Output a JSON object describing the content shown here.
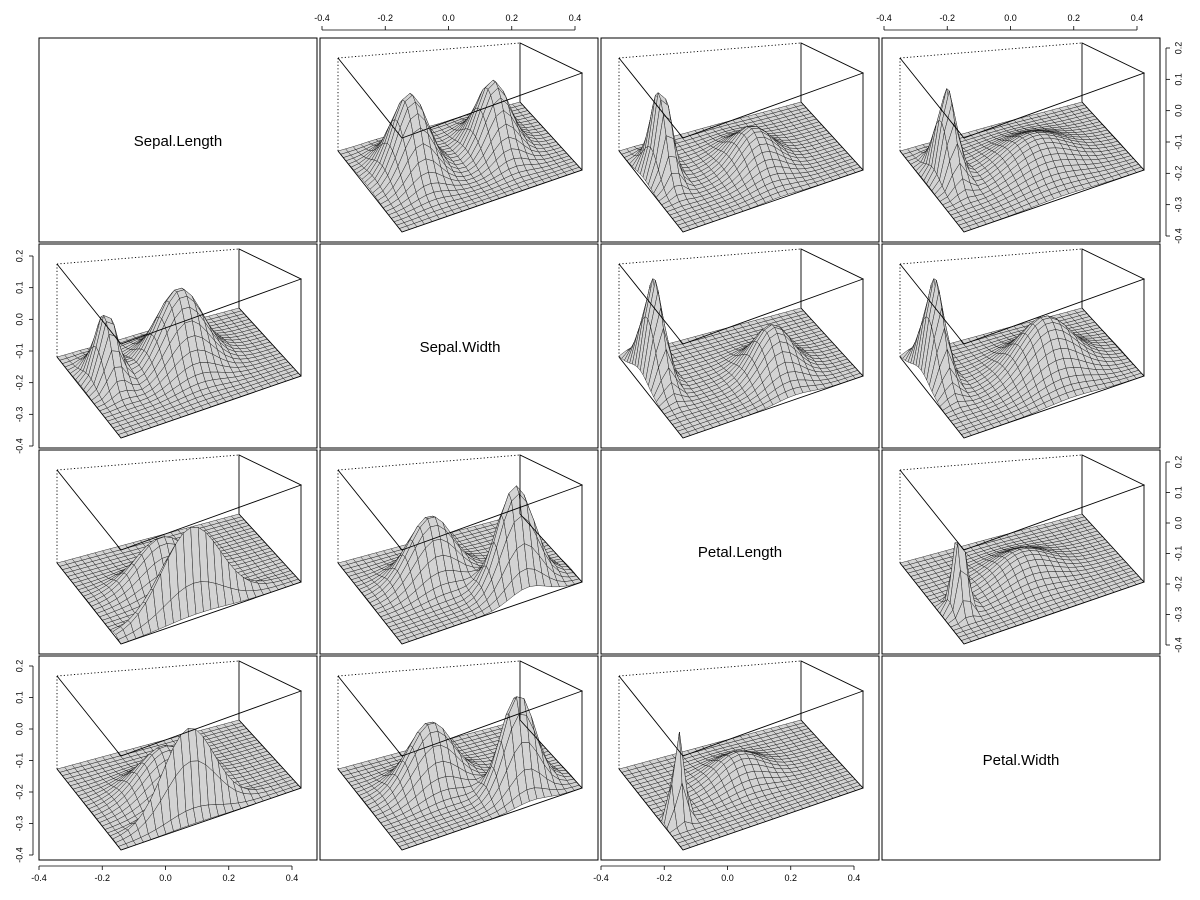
{
  "chart_data": {
    "type": "perspective-surface-matrix",
    "variables": [
      "Sepal.Length",
      "Sepal.Width",
      "Petal.Length",
      "Petal.Width"
    ],
    "tick_labels": [
      "-0.4",
      "-0.2",
      "0.0",
      "0.2",
      "0.4"
    ],
    "vertical_tick_labels": [
      "0.2",
      "0.1",
      "0.0",
      "-0.1",
      "-0.2",
      "-0.3",
      "-0.4"
    ],
    "surface_color": "#d3d3d3",
    "panels": [
      {
        "row": 1,
        "col": 2,
        "peaks": [
          {
            "u": 0.24,
            "v": 0.55,
            "height": 1.0,
            "spread_u": 0.09,
            "spread_v": 0.16
          },
          {
            "u": 0.7,
            "v": 0.55,
            "height": 0.85,
            "spread_u": 0.08,
            "spread_v": 0.16
          }
        ]
      },
      {
        "row": 1,
        "col": 3,
        "peaks": [
          {
            "u": 0.1,
            "v": 0.62,
            "height": 1.15,
            "spread_u": 0.04,
            "spread_v": 0.12
          },
          {
            "u": 0.55,
            "v": 0.45,
            "height": 0.45,
            "spread_u": 0.1,
            "spread_v": 0.18
          }
        ]
      },
      {
        "row": 1,
        "col": 4,
        "peaks": [
          {
            "u": 0.12,
            "v": 0.6,
            "height": 1.1,
            "spread_u": 0.04,
            "spread_v": 0.12
          },
          {
            "u": 0.55,
            "v": 0.45,
            "height": 0.35,
            "spread_u": 0.16,
            "spread_v": 0.2
          }
        ]
      },
      {
        "row": 2,
        "col": 1,
        "peaks": [
          {
            "u": 0.14,
            "v": 0.62,
            "height": 0.85,
            "spread_u": 0.05,
            "spread_v": 0.12
          },
          {
            "u": 0.52,
            "v": 0.55,
            "height": 0.95,
            "spread_u": 0.12,
            "spread_v": 0.16
          }
        ]
      },
      {
        "row": 2,
        "col": 3,
        "peaks": [
          {
            "u": 0.08,
            "v": 0.68,
            "height": 1.25,
            "spread_u": 0.04,
            "spread_v": 0.14
          },
          {
            "u": 0.62,
            "v": 0.35,
            "height": 0.6,
            "spread_u": 0.1,
            "spread_v": 0.16
          }
        ]
      },
      {
        "row": 2,
        "col": 4,
        "peaks": [
          {
            "u": 0.08,
            "v": 0.68,
            "height": 1.25,
            "spread_u": 0.04,
            "spread_v": 0.14
          },
          {
            "u": 0.6,
            "v": 0.42,
            "height": 0.65,
            "spread_u": 0.14,
            "spread_v": 0.18
          }
        ]
      },
      {
        "row": 3,
        "col": 1,
        "peaks": [
          {
            "u": 0.42,
            "v": 0.1,
            "height": 1.15,
            "spread_u": 0.16,
            "spread_v": 0.04
          },
          {
            "u": 0.4,
            "v": 0.5,
            "height": 0.55,
            "spread_u": 0.14,
            "spread_v": 0.1
          }
        ]
      },
      {
        "row": 3,
        "col": 2,
        "peaks": [
          {
            "u": 0.35,
            "v": 0.55,
            "height": 0.8,
            "spread_u": 0.12,
            "spread_v": 0.12
          },
          {
            "u": 0.7,
            "v": 0.2,
            "height": 1.25,
            "spread_u": 0.1,
            "spread_v": 0.1
          }
        ]
      },
      {
        "row": 3,
        "col": 4,
        "peaks": [
          {
            "u": 0.1,
            "v": 0.35,
            "height": 1.05,
            "spread_u": 0.03,
            "spread_v": 0.06
          },
          {
            "u": 0.5,
            "v": 0.5,
            "height": 0.3,
            "spread_u": 0.14,
            "spread_v": 0.16
          }
        ]
      },
      {
        "row": 4,
        "col": 1,
        "peaks": [
          {
            "u": 0.42,
            "v": 0.12,
            "height": 1.05,
            "spread_u": 0.14,
            "spread_v": 0.04
          },
          {
            "u": 0.4,
            "v": 0.45,
            "height": 0.55,
            "spread_u": 0.14,
            "spread_v": 0.14
          }
        ]
      },
      {
        "row": 4,
        "col": 2,
        "peaks": [
          {
            "u": 0.35,
            "v": 0.55,
            "height": 0.8,
            "spread_u": 0.12,
            "spread_v": 0.12
          },
          {
            "u": 0.72,
            "v": 0.22,
            "height": 1.2,
            "spread_u": 0.09,
            "spread_v": 0.09
          }
        ]
      },
      {
        "row": 4,
        "col": 3,
        "peaks": [
          {
            "u": 0.08,
            "v": 0.3,
            "height": 1.15,
            "spread_u": 0.03,
            "spread_v": 0.04
          },
          {
            "u": 0.5,
            "v": 0.55,
            "height": 0.3,
            "spread_u": 0.12,
            "spread_v": 0.14
          }
        ]
      }
    ]
  }
}
